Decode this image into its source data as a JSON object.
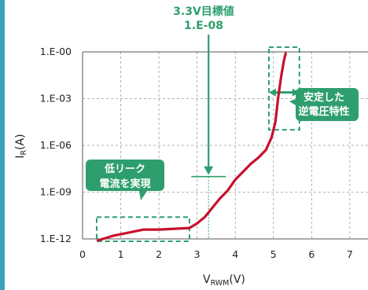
{
  "chart_data": {
    "type": "line",
    "xlabel_main": "V",
    "xlabel_sub": "RWM",
    "xlabel_unit": "(V)",
    "ylabel_main": "I",
    "ylabel_sub": "R",
    "ylabel_unit": "(A)",
    "xlim": [
      0,
      7.6
    ],
    "ylim": [
      -12,
      0
    ],
    "x_ticks": [
      "0",
      "1",
      "2",
      "3",
      "4",
      "5",
      "6",
      "7"
    ],
    "y_ticks": [
      "1.E-00",
      "1.E-03",
      "1.E-06",
      "1.E-09",
      "1.E-12"
    ],
    "grid": true,
    "series": [
      {
        "color": "#c8102e",
        "x": [
          0.4,
          0.8,
          1.2,
          1.6,
          2.0,
          2.4,
          2.8,
          3.0,
          3.2,
          3.4,
          3.6,
          3.8,
          4.0,
          4.2,
          4.4,
          4.6,
          4.8,
          4.95,
          5.05,
          5.12,
          5.2,
          5.27,
          5.32
        ],
        "y": [
          -12.1,
          -11.8,
          -11.6,
          -11.4,
          -11.4,
          -11.35,
          -11.3,
          -11.0,
          -10.6,
          -10.0,
          -9.4,
          -8.9,
          -8.2,
          -7.7,
          -7.2,
          -6.8,
          -6.3,
          -5.5,
          -4.5,
          -3.0,
          -1.6,
          -0.6,
          -0.1
        ]
      }
    ],
    "annotations": {
      "target": {
        "line1": "3.3V目標値",
        "line2": "1.E-08",
        "x": 3.3,
        "y": -8
      },
      "low_leak": {
        "line1": "低リーク",
        "line2": "電流を実現"
      },
      "stable": {
        "line1": "安定した",
        "line2": "逆電圧特性"
      }
    },
    "colors": {
      "curve": "#c8102e",
      "annotation": "#2e9e6e",
      "grid": "#9a9a9a"
    }
  }
}
